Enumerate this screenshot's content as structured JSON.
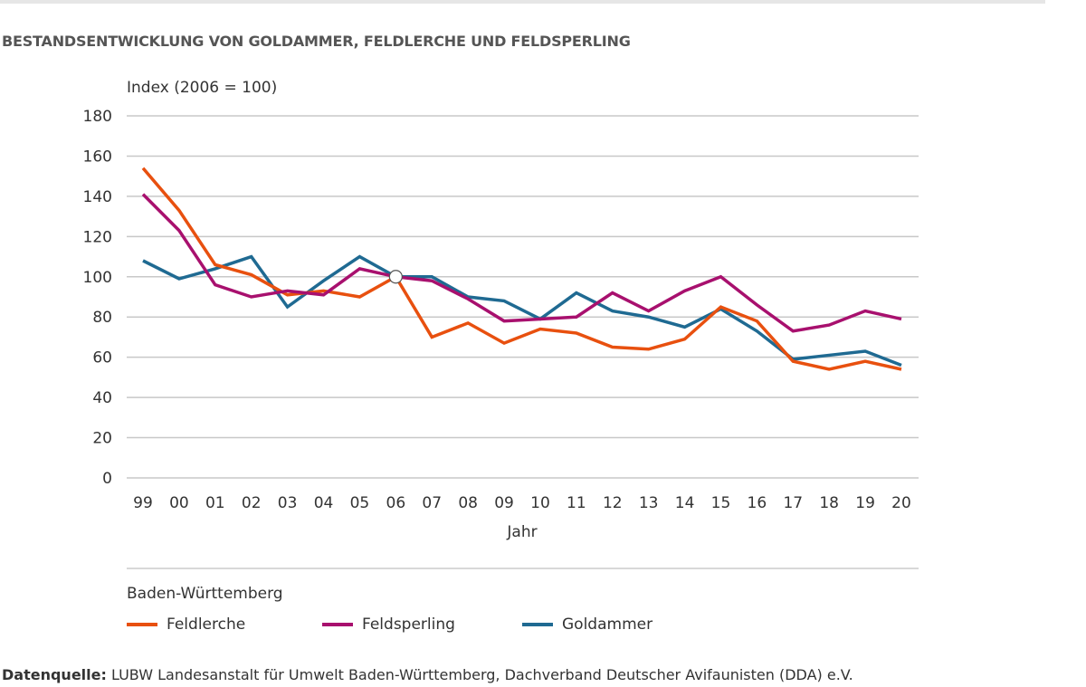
{
  "title": "BESTANDSENTWICKLUNG VON GOLDAMMER, FELDLERCHE UND FELDSPERLING",
  "region": "Baden-Württemberg",
  "source": {
    "label": "Datenquelle:",
    "text": " LUBW Landesanstalt für Umwelt Baden-Württemberg,  Dachverband Deutscher Avifaunisten (DDA) e.V."
  },
  "chart_data": {
    "type": "line",
    "title": "BESTANDSENTWICKLUNG VON GOLDAMMER, FELDLERCHE UND FELDSPERLING",
    "ylabel": "Index (2006 = 100)",
    "xlabel": "Jahr",
    "ylim": [
      0,
      180
    ],
    "yticks": [
      0,
      20,
      40,
      60,
      80,
      100,
      120,
      140,
      160,
      180
    ],
    "grid": true,
    "legend": "bottom",
    "x": [
      "99",
      "00",
      "01",
      "02",
      "03",
      "04",
      "05",
      "06",
      "07",
      "08",
      "09",
      "10",
      "11",
      "12",
      "13",
      "14",
      "15",
      "16",
      "17",
      "18",
      "19",
      "20"
    ],
    "reference_point": {
      "x": "06",
      "y": 100
    },
    "series": [
      {
        "name": "Feldlerche",
        "color": "#e8500f",
        "values": [
          154,
          133,
          106,
          101,
          91,
          93,
          90,
          100,
          70,
          77,
          67,
          74,
          72,
          65,
          64,
          69,
          85,
          78,
          58,
          54,
          58,
          54
        ]
      },
      {
        "name": "Feldsperling",
        "color": "#a8106e",
        "values": [
          141,
          123,
          96,
          90,
          93,
          91,
          104,
          100,
          98,
          89,
          78,
          79,
          80,
          92,
          83,
          93,
          100,
          86,
          73,
          76,
          83,
          79
        ]
      },
      {
        "name": "Goldammer",
        "color": "#1f6a92",
        "values": [
          108,
          99,
          104,
          110,
          85,
          98,
          110,
          100,
          100,
          90,
          88,
          79,
          92,
          83,
          80,
          75,
          84,
          73,
          59,
          61,
          63,
          56
        ]
      }
    ]
  }
}
